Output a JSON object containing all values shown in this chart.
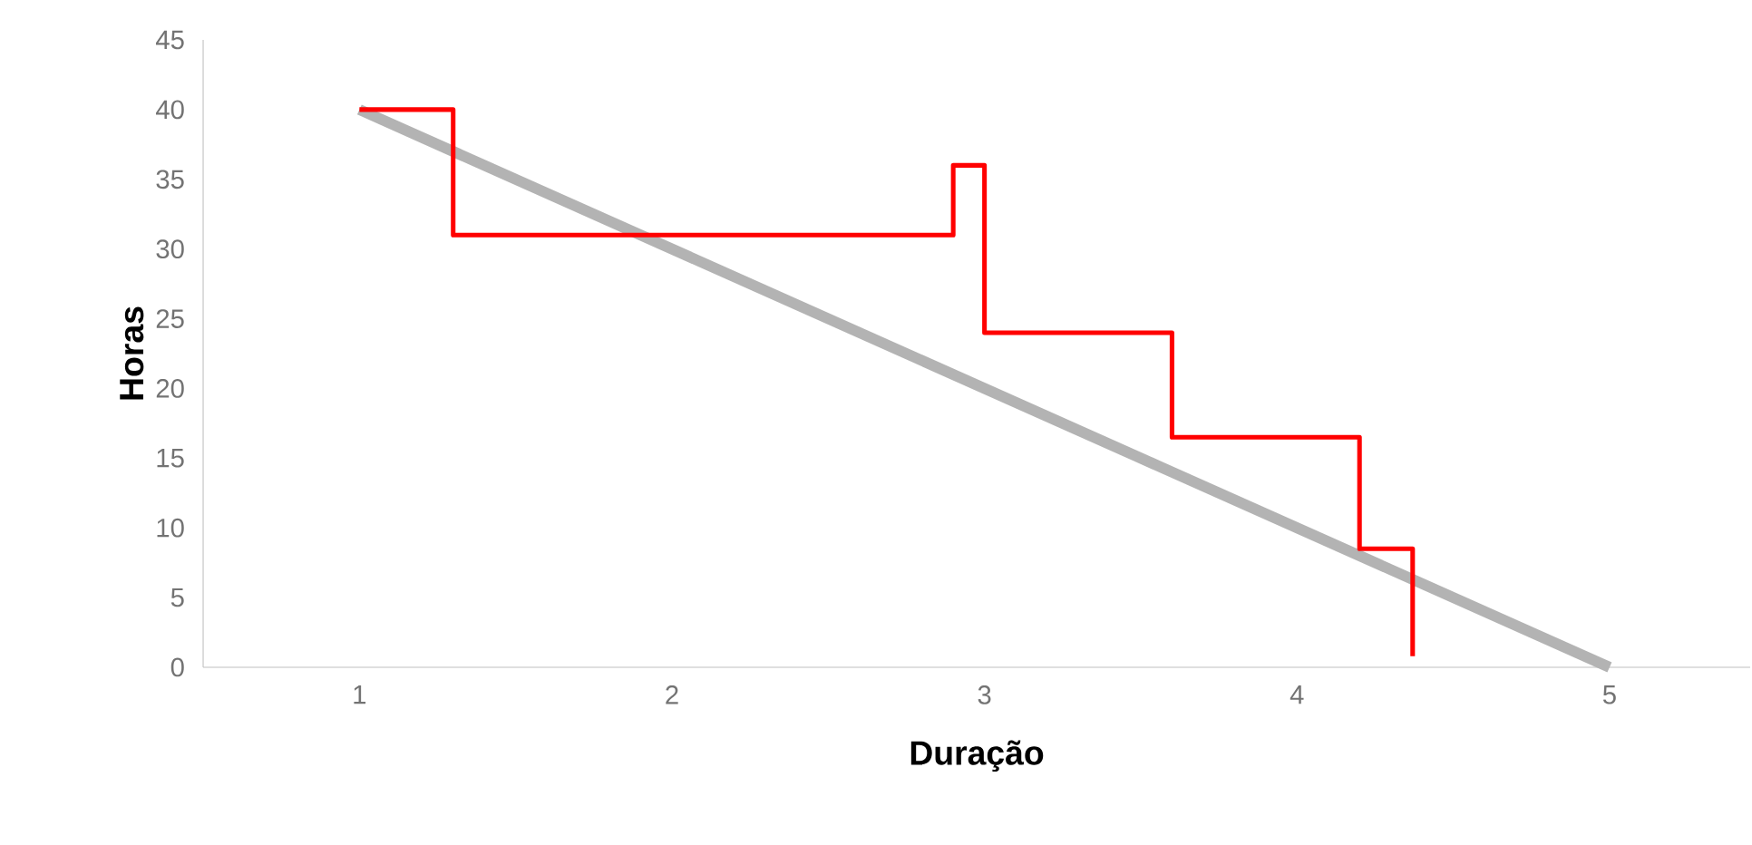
{
  "chart_data": {
    "type": "line",
    "xlabel": "Duração",
    "ylabel": "Horas",
    "xlim": [
      0.5,
      5.45
    ],
    "ylim": [
      0,
      45
    ],
    "xticks": [
      1,
      2,
      3,
      4,
      5
    ],
    "yticks": [
      0,
      5,
      10,
      15,
      20,
      25,
      30,
      35,
      40,
      45
    ],
    "grid": false,
    "marker": "none",
    "series": [
      {
        "color": "#b3b3b3",
        "x": [
          1,
          5
        ],
        "values": [
          40,
          0
        ]
      },
      {
        "type": "step",
        "color": "#ff0000",
        "x": [
          1,
          1.3,
          2.9,
          3,
          3.6,
          4.2,
          4.37
        ],
        "values": [
          40,
          31,
          36,
          24,
          16.5,
          8.5,
          0.8
        ]
      }
    ]
  }
}
